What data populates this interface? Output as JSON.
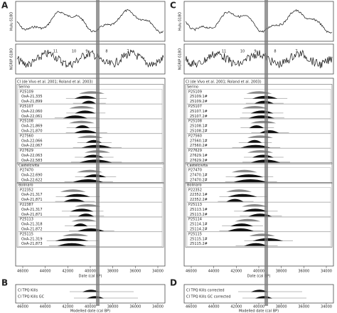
{
  "panels": [
    {
      "letter": "A",
      "y_labels": [
        "Hulu δ18O",
        "NGRIP δ18O"
      ],
      "events": [
        "11",
        "10",
        "9",
        "8",
        "7"
      ],
      "header": "CI (de Vivo et al. 2001; Roland et al. 2003)",
      "groups": [
        {
          "name": "Serino",
          "samples": [
            {
              "id": "P25109",
              "runs": [
                "OxA-21,335",
                "OxA-21,899"
              ]
            },
            {
              "id": "P25107",
              "runs": [
                "OxA-22,060",
                "OxA-22,061"
              ]
            },
            {
              "id": "P25108",
              "runs": [
                "OxA-21,869",
                "OxA-21,870"
              ]
            },
            {
              "id": "P27560",
              "runs": [
                "OxA-22,066",
                "OxA-22,067"
              ]
            },
            {
              "id": "P27629",
              "runs": [
                "OxA-22,063",
                "OxA-22,583"
              ]
            }
          ]
        },
        {
          "name": "Castelcivita",
          "samples": [
            {
              "id": "P27470",
              "runs": [
                "OxA-22,690",
                "OxA-22,622"
              ]
            }
          ]
        },
        {
          "name": "Bolinaro",
          "samples": [
            {
              "id": "P22352",
              "runs": [
                "OxA-21,317",
                "OxA-21,871"
              ]
            },
            {
              "id": "P22387",
              "runs": [
                "OxA-21,317",
                "OxA-21,871"
              ]
            },
            {
              "id": "P25113",
              "runs": [
                "OxA-21,318",
                "OxA-21,872"
              ]
            },
            {
              "id": "P25115",
              "runs": [
                "OxA-21,319",
                "OxA-21,873"
              ]
            }
          ]
        }
      ],
      "x_title": "Date (cal BP)",
      "xticks": [
        "46000",
        "44000",
        "42000",
        "40000",
        "38000",
        "36000",
        "34000"
      ],
      "letter2": "B",
      "bottom_rows": [
        "CI TPQ Kills",
        "CI TPQ Kills GC"
      ],
      "x_title2": "Modelled date (cal BP)"
    },
    {
      "letter": "C",
      "y_labels": [
        "Hulu δ18O",
        "NGRIP δ18O"
      ],
      "events": [
        "11",
        "10",
        "9",
        "8",
        "7"
      ],
      "header": "CI (de Vivo et al. 2001; Roland et al. 2003)",
      "groups": [
        {
          "name": "Serino",
          "samples": [
            {
              "id": "P25109",
              "runs": [
                "25109.1#",
                "25109.2#"
              ]
            },
            {
              "id": "P25107",
              "runs": [
                "25107.1#",
                "25107.2#"
              ]
            },
            {
              "id": "P25108",
              "runs": [
                "25108.1#",
                "25108.2#"
              ]
            },
            {
              "id": "P27560",
              "runs": [
                "27560.1#",
                "27560.2#"
              ]
            },
            {
              "id": "P27629",
              "runs": [
                "27629.1#",
                "27629.2#"
              ]
            }
          ]
        },
        {
          "name": "Castelcivita",
          "samples": [
            {
              "id": "P27470",
              "runs": [
                "27470.1#",
                "27470.2#"
              ]
            }
          ]
        },
        {
          "name": "Bolinaro",
          "samples": [
            {
              "id": "P22352",
              "runs": [
                "22352.1#",
                "22352.2#"
              ]
            },
            {
              "id": "P25113",
              "runs": [
                "25113.1#",
                "25113.2#"
              ]
            },
            {
              "id": "P25114",
              "runs": [
                "25114.1#",
                "25114.2#"
              ]
            },
            {
              "id": "P25115",
              "runs": [
                "25115.1#",
                "25115.2#"
              ]
            }
          ]
        }
      ],
      "x_title": "Date (cal BP)",
      "xticks": [
        "46000",
        "44000",
        "42000",
        "40000",
        "38000",
        "36000",
        "34000"
      ],
      "letter2": "D",
      "bottom_rows": [
        "CI TPQ Kills corrected",
        "CI TPQ Kills GC corrected"
      ],
      "x_title2": "Modelled date (cal BP)"
    }
  ]
}
